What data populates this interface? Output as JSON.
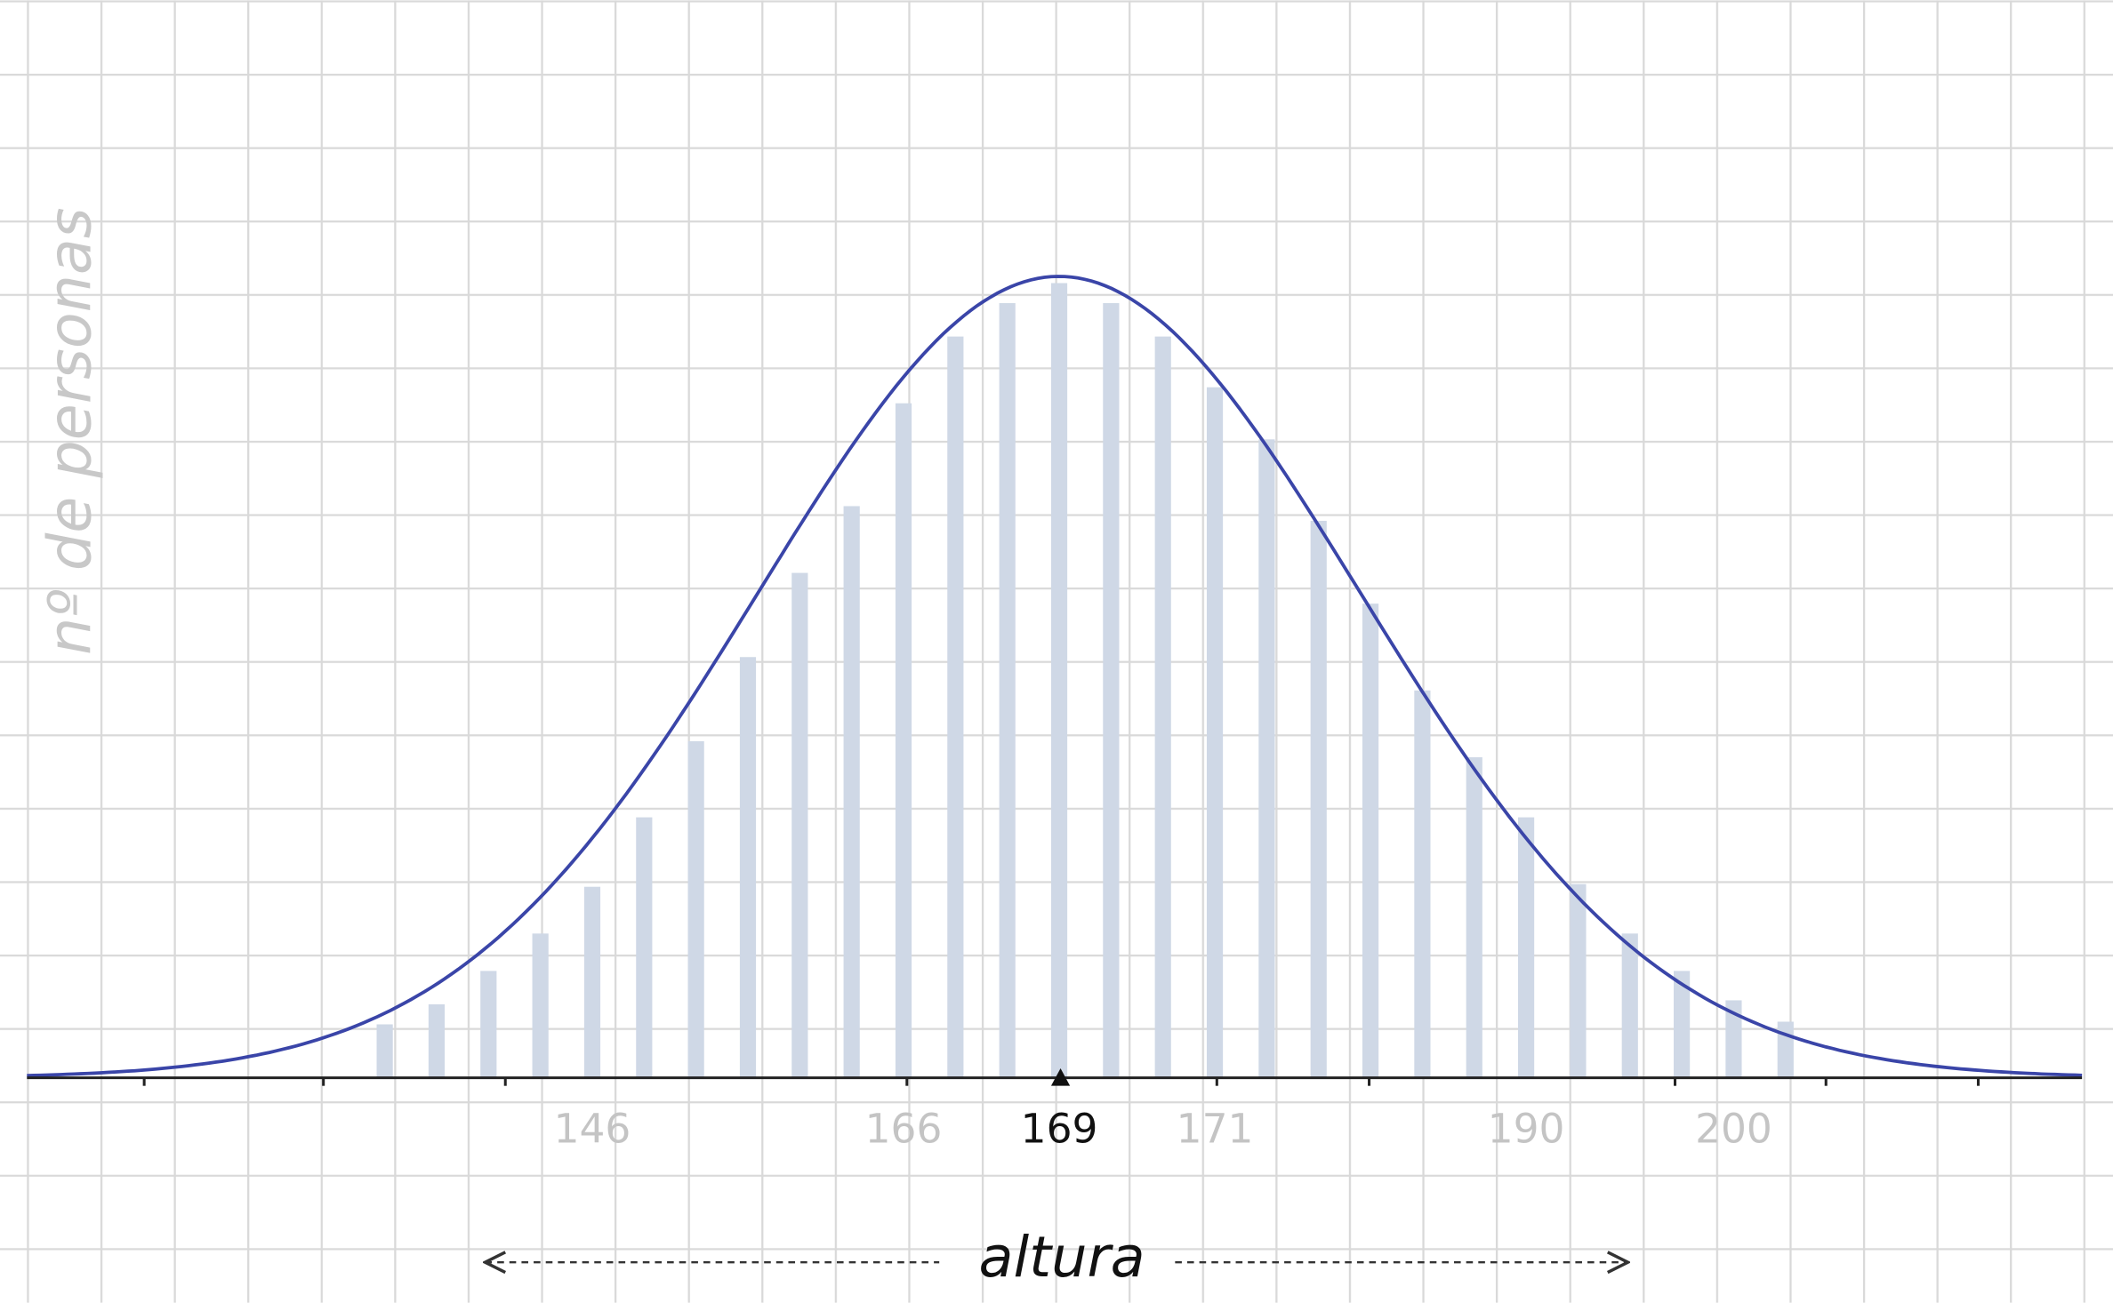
{
  "chart_data": {
    "type": "bar",
    "y_label": "nº de personas",
    "x_label": "altura",
    "categories": [
      null,
      null,
      null,
      null,
      "146",
      null,
      null,
      null,
      null,
      null,
      "166",
      null,
      null,
      "169",
      null,
      null,
      "171",
      null,
      null,
      null,
      null,
      null,
      "190",
      null,
      null,
      null,
      "200",
      null
    ],
    "values": [
      40,
      55,
      80,
      108,
      143,
      195,
      252,
      315,
      378,
      428,
      505,
      555,
      580,
      595,
      580,
      555,
      517,
      478,
      417,
      355,
      290,
      240,
      195,
      145,
      108,
      80,
      58,
      42
    ],
    "ylim": [
      0,
      600
    ],
    "color": "#cfd8e6",
    "curve_color": "#3a45a8",
    "label_color": "#c4c4c4",
    "highlight": 13,
    "highlight_color": "#111111"
  }
}
